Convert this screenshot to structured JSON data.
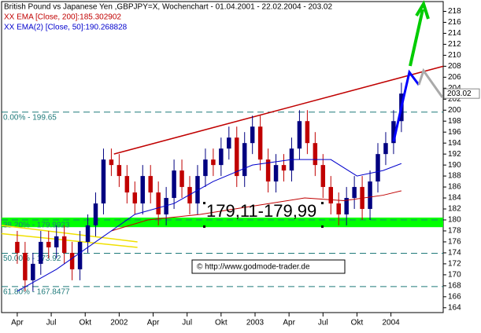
{
  "chart_data": {
    "type": "candlestick",
    "title": "British Pound vs Japanese Yen ,GBPJPY=X, Wochenchart - 01.04.2001 - 22.02.2004 - 203.02",
    "up_color": "#000080",
    "down_color": "#c00000",
    "x": [
      0,
      3,
      6,
      9,
      12,
      15,
      18,
      21,
      24,
      27,
      30,
      33,
      36,
      39,
      42,
      45,
      48,
      51,
      54,
      57,
      60,
      63,
      66,
      69,
      72,
      75,
      78,
      81,
      84,
      87,
      90,
      93,
      96,
      99,
      102,
      105,
      108,
      111,
      114,
      117,
      120,
      123,
      126,
      129,
      132,
      135,
      138,
      141,
      144,
      147
    ],
    "open": [
      176,
      174,
      169,
      172,
      176,
      175,
      177,
      174,
      171,
      176,
      179,
      183,
      191,
      190,
      188,
      185,
      183,
      188,
      185,
      181,
      184,
      189,
      186,
      183,
      188,
      191,
      190,
      193,
      195,
      188,
      194,
      197,
      191,
      187,
      190,
      189,
      193,
      198,
      194,
      190,
      186,
      183,
      181,
      184,
      186,
      182,
      187,
      192,
      194,
      198
    ],
    "high": [
      178,
      176,
      174,
      178,
      178,
      179,
      179,
      176,
      178,
      181,
      185,
      193,
      193,
      192,
      190,
      187,
      190,
      190,
      187,
      186,
      191,
      191,
      188,
      190,
      193,
      193,
      195,
      197,
      197,
      196,
      199,
      199,
      193,
      192,
      192,
      195,
      200,
      200,
      196,
      192,
      188,
      185,
      186,
      188,
      188,
      189,
      194,
      196,
      200,
      205
    ],
    "low": [
      172,
      167,
      167,
      170,
      173,
      173,
      172,
      169,
      169,
      174,
      177,
      181,
      188,
      186,
      183,
      181,
      181,
      183,
      179,
      179,
      182,
      184,
      181,
      181,
      186,
      188,
      188,
      191,
      186,
      186,
      192,
      189,
      185,
      185,
      187,
      187,
      191,
      192,
      188,
      184,
      181,
      179,
      179,
      182,
      180,
      180,
      185,
      190,
      192,
      196
    ],
    "close": [
      174,
      169,
      172,
      176,
      175,
      177,
      174,
      171,
      176,
      179,
      183,
      191,
      190,
      188,
      185,
      183,
      188,
      185,
      181,
      184,
      189,
      186,
      183,
      188,
      191,
      190,
      193,
      195,
      188,
      194,
      197,
      191,
      187,
      190,
      189,
      193,
      198,
      194,
      190,
      186,
      183,
      181,
      184,
      186,
      182,
      187,
      192,
      194,
      198,
      203.02
    ],
    "lines": [
      {
        "name": "XX EMA [Close, 200]:185.302902",
        "color": "#c00000",
        "x": [
          36,
          50,
          70,
          90,
          110,
          125,
          140,
          147
        ],
        "values": [
          178,
          180,
          181,
          182.5,
          184,
          183.5,
          184.5,
          185.302902
        ]
      },
      {
        "name": "XX EMA(2) [Close, 50]:190.268828",
        "color": "#0000cc",
        "x": [
          0,
          15,
          30,
          45,
          60,
          75,
          90,
          105,
          120,
          130,
          140,
          147
        ],
        "values": [
          167,
          171,
          176,
          181,
          183,
          187,
          190,
          191,
          191,
          188,
          189,
          190.268828
        ]
      }
    ],
    "trendlines": [
      {
        "color": "#c00000",
        "x": [
          37,
          163
        ],
        "values": [
          192,
          208
        ]
      },
      {
        "color": "#f0e000",
        "x": [
          -6,
          46
        ],
        "values": [
          179,
          176
        ]
      },
      {
        "color": "#f0e000",
        "x": [
          -6,
          46
        ],
        "values": [
          177.5,
          175
        ]
      }
    ],
    "levels": [
      {
        "value": 199.65,
        "label": "0.00% - 199.65"
      },
      {
        "value": 179.9923,
        "label": "38.20% - 179.9923"
      },
      {
        "value": 173.92,
        "label": "50.00% - 173.92"
      },
      {
        "value": 167.8477,
        "label": "61.80% - 167.8477"
      }
    ],
    "zone": {
      "low": 179.11,
      "high": 179.99,
      "label": "179,11-179,99",
      "color": "#00ff00"
    },
    "copyright": "© http://www.godmode-trader.de",
    "xlim": [
      -6,
      163
    ],
    "xticks": [
      {
        "value": 0,
        "label": "Apr"
      },
      {
        "value": 13,
        "label": "Jul"
      },
      {
        "value": 26,
        "label": "Okt"
      },
      {
        "value": 39,
        "label": "2002"
      },
      {
        "value": 52,
        "label": "Apr"
      },
      {
        "value": 65,
        "label": "Jul"
      },
      {
        "value": 78,
        "label": "Okt"
      },
      {
        "value": 91,
        "label": "2003"
      },
      {
        "value": 104,
        "label": "Apr"
      },
      {
        "value": 117,
        "label": "Jul"
      },
      {
        "value": 130,
        "label": "Okt"
      },
      {
        "value": 143,
        "label": "2004"
      }
    ],
    "ylim": [
      163.4,
      219.5
    ],
    "yticks": [
      164,
      166,
      168,
      170,
      172,
      174,
      176,
      178,
      180,
      182,
      184,
      186,
      188,
      190,
      192,
      194,
      196,
      198,
      200,
      202,
      204,
      206,
      208,
      210,
      212,
      214,
      216,
      218
    ]
  }
}
